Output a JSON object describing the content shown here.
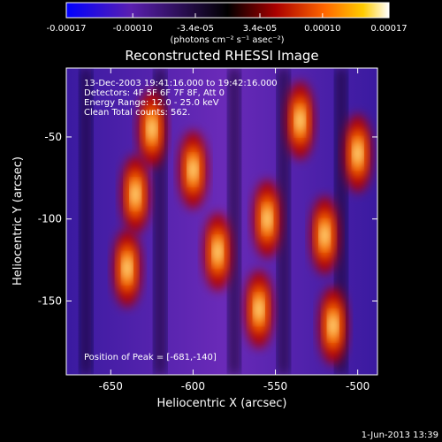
{
  "chart_data": {
    "type": "heatmap",
    "title": "Reconstructed RHESSI Image",
    "xlabel": "Heliocentric X (arcsec)",
    "ylabel": "Heliocentric Y (arcsec)",
    "xlim": [
      -677,
      -488
    ],
    "ylim": [
      -195,
      -8
    ],
    "x_ticks": [
      {
        "value": -650,
        "label": "-650"
      },
      {
        "value": -600,
        "label": "-600"
      },
      {
        "value": -550,
        "label": "-550"
      },
      {
        "value": -500,
        "label": "-500"
      }
    ],
    "y_ticks": [
      {
        "value": -50,
        "label": "-50"
      },
      {
        "value": -100,
        "label": "-100"
      },
      {
        "value": -150,
        "label": "-150"
      }
    ],
    "annotations": [
      "13-Dec-2003 19:41:16.000 to 19:42:16.000",
      "Detectors: 4F 5F 6F 7F 8F, Att 0",
      "Energy Range: 12.0 - 25.0 keV",
      "Clean    Total counts: 562."
    ],
    "peak_label": "Position of Peak = [-681,-140]",
    "colorbar": {
      "range": [
        -0.00017,
        0.00017
      ],
      "ticks": [
        {
          "value": -0.00017,
          "label": "-0.00017"
        },
        {
          "value": -0.0001,
          "label": "-0.00010"
        },
        {
          "value": -3.4e-05,
          "label": "-3.4e-05"
        },
        {
          "value": 3.4e-05,
          "label": "3.4e-05"
        },
        {
          "value": 0.0001,
          "label": "0.00010"
        },
        {
          "value": 0.00017,
          "label": "0.00017"
        }
      ],
      "unit_label": "(photons cm⁻² s⁻¹ asec⁻²)",
      "colors": [
        "#0000ff",
        "#5a1fb0",
        "#000000",
        "#aa0000",
        "#ff6600",
        "#ffcc00",
        "#ffffff"
      ]
    },
    "bright_sources": [
      {
        "x": -635,
        "y": -85
      },
      {
        "x": -640,
        "y": -130
      },
      {
        "x": -600,
        "y": -70
      },
      {
        "x": -560,
        "y": -155
      },
      {
        "x": -555,
        "y": -100
      },
      {
        "x": -535,
        "y": -40
      },
      {
        "x": -520,
        "y": -110
      },
      {
        "x": -500,
        "y": -60
      },
      {
        "x": -515,
        "y": -165
      },
      {
        "x": -585,
        "y": -120
      },
      {
        "x": -625,
        "y": -45
      }
    ]
  },
  "timestamp": "1-Jun-2013 13:39"
}
